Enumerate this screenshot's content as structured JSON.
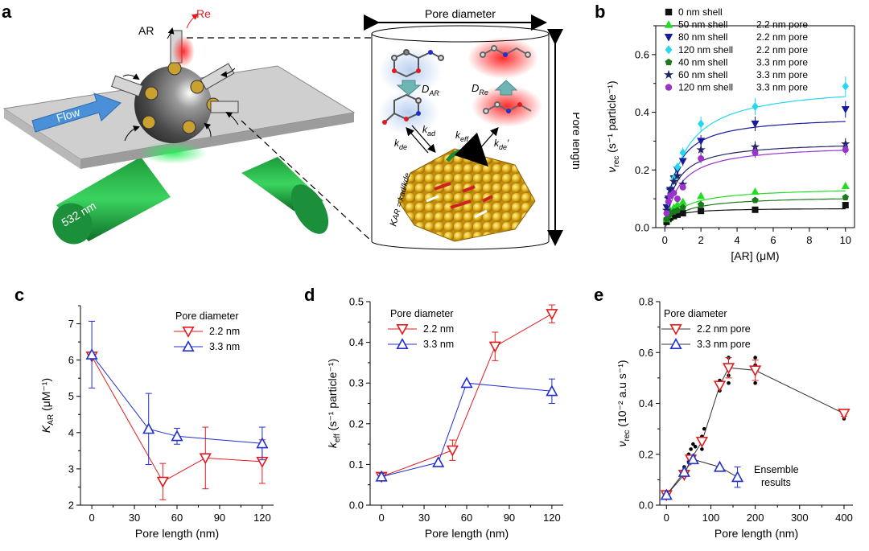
{
  "colors": {
    "red": "#e41a1c",
    "blue": "#1f2fd0",
    "black": "#111111",
    "green_light": "#22dd22",
    "navy": "#1a1a9a",
    "cyan": "#22d8f0",
    "green_dark": "#1a7a1a",
    "navy2": "#222266",
    "purple": "#9933cc"
  },
  "panel_labels": {
    "a": "a",
    "b": "b",
    "c": "c",
    "d": "d",
    "e": "e"
  },
  "schematic": {
    "flow_label": "Flow",
    "laser_label": "532 nm",
    "ar_label": "AR",
    "re_label": "Re",
    "pore_diameter": "Pore diameter",
    "pore_length": "Pore length",
    "d_ar": "D",
    "d_ar_sub": "AR",
    "d_re": "D",
    "d_re_sub": "Re",
    "k_ad": "k",
    "k_ad_sub": "ad",
    "k_de": "k",
    "k_de_sub": "de",
    "k_eff": "k",
    "k_eff_sub": "eff",
    "k_de2": "k",
    "k_de2_sub": "de",
    "k_de2_prime": "′",
    "kar_eq": "K",
    "kar_eq_rest": "AR = kad/kde"
  },
  "chart_data": [
    {
      "panel": "b",
      "type": "scatter",
      "xlabel": "[AR] (μM)",
      "ylabel_main": "ν",
      "ylabel_sub": "rec",
      "ylabel_rest": " (s⁻¹ particle⁻¹)",
      "xlim": [
        -0.5,
        10.5
      ],
      "ylim": [
        0,
        0.7
      ],
      "xticks": [
        0,
        2,
        4,
        6,
        8,
        10
      ],
      "yticks": [
        0.0,
        0.2,
        0.4,
        0.6
      ],
      "ytick_labels": [
        "0.0",
        "0.2",
        "0.4",
        "0.6"
      ],
      "legend": [
        {
          "shell": "0 nm shell",
          "pore": ""
        },
        {
          "shell": "50 nm shell",
          "pore": "2.2 nm pore"
        },
        {
          "shell": "80 nm shell",
          "pore": "2.2 nm pore"
        },
        {
          "shell": "120 nm shell",
          "pore": "2.2 nm pore"
        },
        {
          "shell": "40 nm shell",
          "pore": "3.3 nm pore"
        },
        {
          "shell": "60 nm shell",
          "pore": "3.3 nm pore"
        },
        {
          "shell": "120 nm shell",
          "pore": "3.3 nm pore"
        }
      ],
      "x": [
        0.1,
        0.2,
        0.3,
        0.5,
        0.7,
        1,
        2,
        5,
        10
      ],
      "series": [
        {
          "name": "0 nm shell",
          "color": "black",
          "marker": "square",
          "vmax": 0.068,
          "km": 0.4,
          "values": [
            0.02,
            0.03,
            0.035,
            0.04,
            0.045,
            0.05,
            0.058,
            0.062,
            0.078
          ]
        },
        {
          "name": "50 nm shell, 2.2 nm pore",
          "color": "green_light",
          "marker": "tri-up",
          "vmax": 0.14,
          "km": 1.0,
          "values": [
            0.03,
            0.045,
            0.06,
            0.07,
            0.08,
            0.09,
            0.11,
            0.125,
            0.145
          ]
        },
        {
          "name": "80 nm shell, 2.2 nm pore",
          "color": "navy",
          "marker": "tri-down",
          "vmax": 0.39,
          "km": 0.6,
          "values": [
            0.07,
            0.1,
            0.13,
            0.17,
            0.2,
            0.23,
            0.3,
            0.36,
            0.41
          ]
        },
        {
          "name": "120 nm shell, 2.2 nm pore",
          "color": "cyan",
          "marker": "diamond",
          "vmax": 0.5,
          "km": 1.0,
          "values": [
            0.05,
            0.09,
            0.12,
            0.17,
            0.21,
            0.26,
            0.36,
            0.42,
            0.49
          ]
        },
        {
          "name": "40 nm shell, 3.3 nm pore",
          "color": "green_dark",
          "marker": "pentagon",
          "vmax": 0.11,
          "km": 1.0,
          "values": [
            0.03,
            0.04,
            0.05,
            0.055,
            0.06,
            0.07,
            0.08,
            0.095,
            0.105
          ]
        },
        {
          "name": "60 nm shell, 3.3 nm pore",
          "color": "navy2",
          "marker": "star",
          "vmax": 0.3,
          "km": 0.6,
          "values": [
            0.06,
            0.1,
            0.13,
            0.16,
            0.18,
            0.15,
            0.27,
            0.28,
            0.29
          ]
        },
        {
          "name": "120 nm shell, 3.3 nm pore",
          "color": "purple",
          "marker": "circle",
          "vmax": 0.29,
          "km": 0.8,
          "values": [
            0.05,
            0.09,
            0.11,
            0.12,
            0.1,
            0.14,
            0.24,
            0.26,
            0.27
          ]
        }
      ]
    },
    {
      "panel": "c",
      "type": "line",
      "title": "Pore diameter",
      "xlabel": "Pore length (nm)",
      "ylabel_main": "K",
      "ylabel_sub": "AR",
      "ylabel_rest": " (μM⁻¹)",
      "xlim": [
        -8,
        128
      ],
      "ylim": [
        2,
        7.5
      ],
      "xticks": [
        0,
        30,
        60,
        90,
        120
      ],
      "yticks": [
        2,
        3,
        4,
        5,
        6,
        7
      ],
      "ytick_labels": [
        "2",
        "3",
        "4",
        "5",
        "6",
        "7"
      ],
      "series": [
        {
          "name": "2.2 nm",
          "color": "red",
          "marker": "tri-down",
          "x": [
            0,
            50,
            80,
            120
          ],
          "values": [
            6.1,
            2.65,
            3.3,
            3.2
          ],
          "err": [
            0.0,
            0.5,
            0.85,
            0.6
          ]
        },
        {
          "name": "3.3 nm",
          "color": "blue",
          "marker": "tri-up",
          "x": [
            0,
            40,
            60,
            120
          ],
          "values": [
            6.15,
            4.1,
            3.9,
            3.7
          ],
          "err": [
            0.92,
            0.98,
            0.22,
            0.45
          ]
        }
      ]
    },
    {
      "panel": "d",
      "type": "line",
      "title": "Pore diameter",
      "xlabel": "Pore length (nm)",
      "ylabel_main": "k",
      "ylabel_sub": "eff",
      "ylabel_rest": " (s⁻¹ particle⁻¹)",
      "xlim": [
        -8,
        128
      ],
      "ylim": [
        0,
        0.5
      ],
      "xticks": [
        0,
        30,
        60,
        90,
        120
      ],
      "yticks": [
        0.0,
        0.1,
        0.2,
        0.3,
        0.4,
        0.5
      ],
      "ytick_labels": [
        "0.0",
        "0.1",
        "0.2",
        "0.3",
        "0.4",
        "0.5"
      ],
      "series": [
        {
          "name": "2.2 nm",
          "color": "red",
          "marker": "tri-down",
          "x": [
            0,
            50,
            80,
            120
          ],
          "values": [
            0.07,
            0.135,
            0.39,
            0.47
          ],
          "err": [
            0.0,
            0.025,
            0.035,
            0.022
          ]
        },
        {
          "name": "3.3 nm",
          "color": "blue",
          "marker": "tri-up",
          "x": [
            0,
            40,
            60,
            120
          ],
          "values": [
            0.07,
            0.105,
            0.3,
            0.28
          ],
          "err": [
            0.008,
            0.0,
            0.0,
            0.03
          ]
        }
      ]
    },
    {
      "panel": "e",
      "type": "line",
      "title": "Pore diameter",
      "annotation_line1": "Ensemble",
      "annotation_line2": "results",
      "xlabel": "Pore length (nm)",
      "ylabel_main": "ν",
      "ylabel_sub": "rec",
      "ylabel_rest": " (10⁻² a.u s⁻¹)",
      "xlim": [
        -15,
        420
      ],
      "ylim": [
        0,
        0.8
      ],
      "xticks": [
        0,
        100,
        200,
        300,
        400
      ],
      "yticks": [
        0.0,
        0.2,
        0.4,
        0.6,
        0.8
      ],
      "ytick_labels": [
        "0.0",
        "0.2",
        "0.4",
        "0.6",
        "0.8"
      ],
      "series": [
        {
          "name": "2.2 nm pore",
          "color": "red",
          "marker": "tri-down",
          "x": [
            0,
            40,
            55,
            80,
            120,
            140,
            200,
            400
          ],
          "values": [
            0.04,
            0.12,
            0.18,
            0.25,
            0.47,
            0.54,
            0.53,
            0.36
          ],
          "err": [
            0.0,
            0.0,
            0.0,
            0.0,
            0.0,
            0.04,
            0.04,
            0.01
          ]
        },
        {
          "name": "3.3 nm pore",
          "color": "blue",
          "marker": "tri-up",
          "x": [
            0,
            40,
            60,
            120,
            160
          ],
          "values": [
            0.04,
            0.13,
            0.18,
            0.15,
            0.11
          ],
          "err": [
            0.0,
            0.0,
            0.0,
            0.0,
            0.04
          ]
        }
      ],
      "scatter_points": [
        [
          0,
          0.03
        ],
        [
          0,
          0.045
        ],
        [
          40,
          0.11
        ],
        [
          40,
          0.14
        ],
        [
          40,
          0.15
        ],
        [
          50,
          0.17
        ],
        [
          50,
          0.2
        ],
        [
          55,
          0.22
        ],
        [
          60,
          0.19
        ],
        [
          60,
          0.24
        ],
        [
          65,
          0.23
        ],
        [
          80,
          0.22
        ],
        [
          80,
          0.27
        ],
        [
          85,
          0.3
        ],
        [
          120,
          0.45
        ],
        [
          120,
          0.49
        ],
        [
          120,
          0.47
        ],
        [
          140,
          0.48
        ],
        [
          140,
          0.58
        ],
        [
          140,
          0.51
        ],
        [
          200,
          0.48
        ],
        [
          200,
          0.58
        ],
        [
          200,
          0.55
        ],
        [
          400,
          0.34
        ],
        [
          400,
          0.37
        ],
        [
          400,
          0.35
        ]
      ]
    }
  ]
}
